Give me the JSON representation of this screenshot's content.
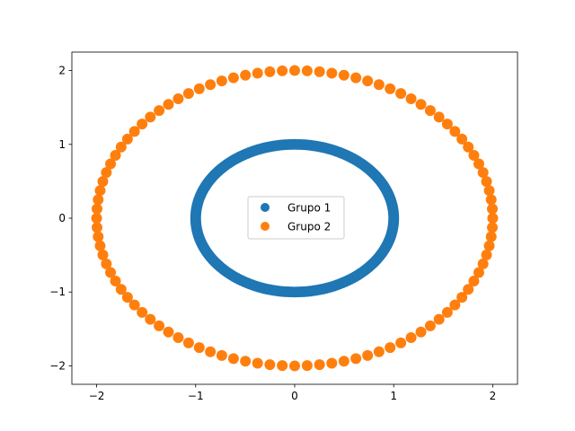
{
  "chart_data": {
    "type": "scatter",
    "title": "",
    "xlabel": "",
    "ylabel": "",
    "xlim": [
      -2.25,
      2.25
    ],
    "ylim": [
      -2.25,
      2.25
    ],
    "xticks": [
      -2,
      -1,
      0,
      1,
      2
    ],
    "xtick_labels": [
      "−2",
      "−1",
      "0",
      "1",
      "2"
    ],
    "yticks": [
      -2,
      -1,
      0,
      1,
      2
    ],
    "ytick_labels": [
      "−2",
      "−1",
      "0",
      "1",
      "2"
    ],
    "grid": false,
    "legend_position": "center",
    "series": [
      {
        "name": "Grupo 1",
        "color": "#1f77b4",
        "shape": "circle",
        "point_count": 200,
        "radius": 1,
        "center": [
          0,
          0
        ]
      },
      {
        "name": "Grupo 2",
        "color": "#ff7f0e",
        "shape": "circle",
        "point_count": 100,
        "radius": 2,
        "center": [
          0,
          0
        ]
      }
    ]
  }
}
